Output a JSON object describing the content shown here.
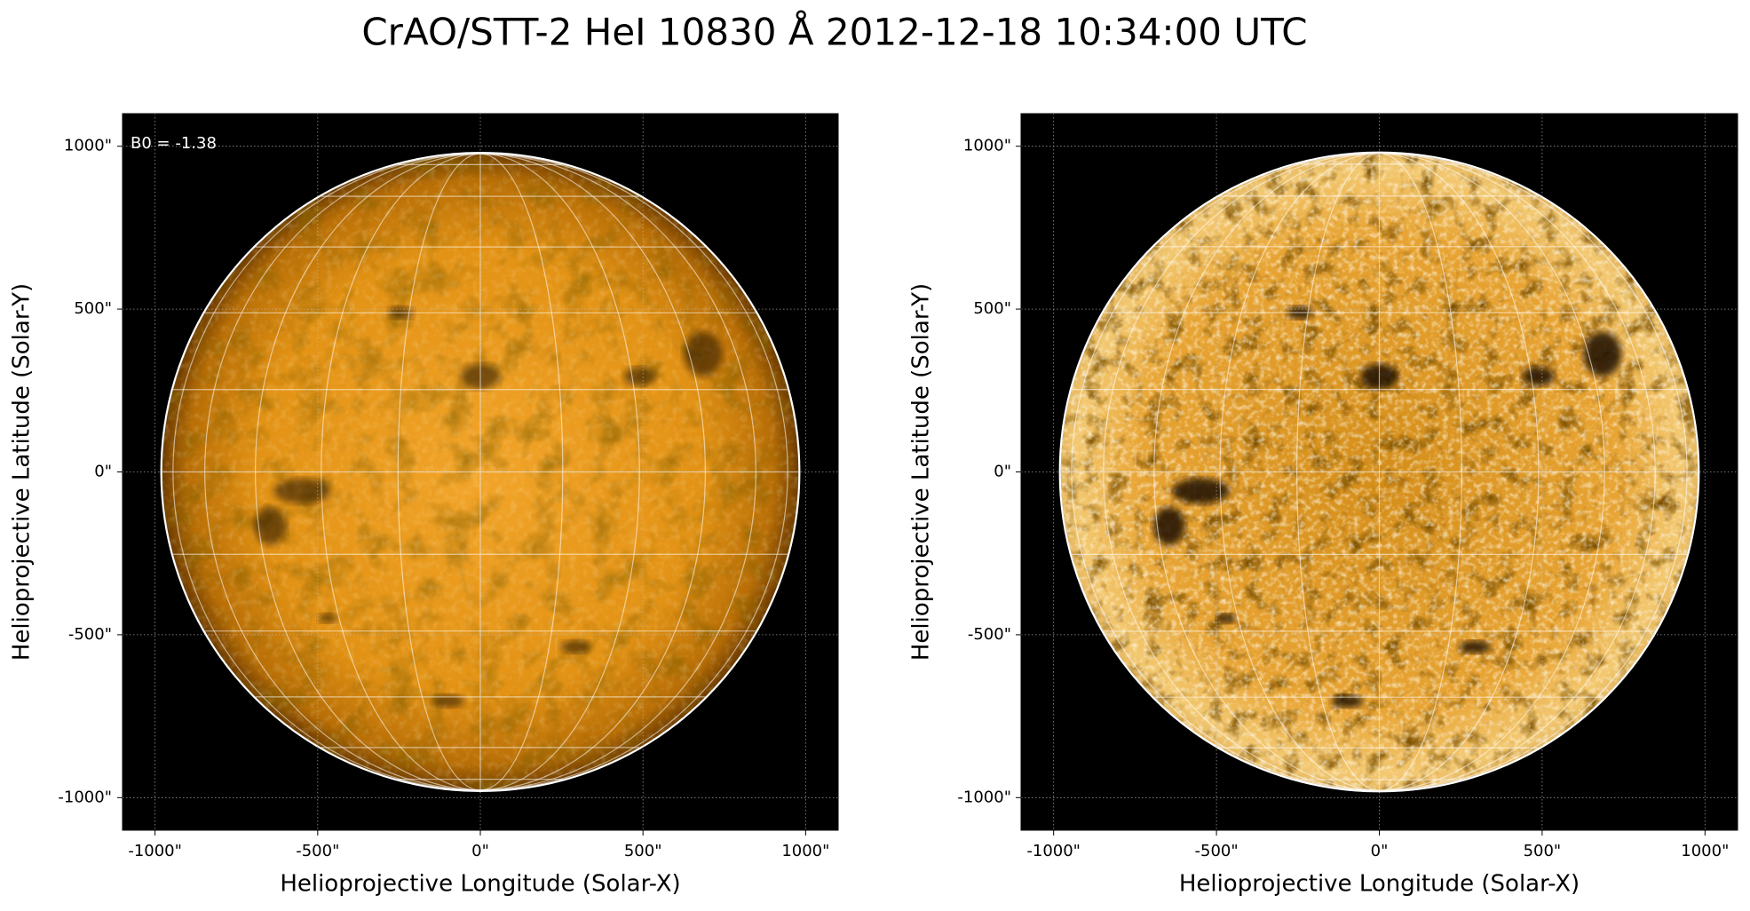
{
  "title": "CrAO/STT-2 HeI 10830 Å 2012-12-18 10:34:00 UTC",
  "chart_data": [
    {
      "type": "image",
      "xlabel": "Helioprojective Longitude (Solar-X)",
      "ylabel": "Helioprojective Latitude (Solar-Y)",
      "xlim": [
        -1100,
        1100
      ],
      "ylim": [
        -1100,
        1100
      ],
      "xticks": [
        {
          "value": -1000,
          "label": "-1000\""
        },
        {
          "value": -500,
          "label": "-500\""
        },
        {
          "value": 0,
          "label": "0\""
        },
        {
          "value": 500,
          "label": "500\""
        },
        {
          "value": 1000,
          "label": "1000\""
        }
      ],
      "yticks": [
        {
          "value": -1000,
          "label": "-1000\""
        },
        {
          "value": -500,
          "label": "-500\""
        },
        {
          "value": 0,
          "label": "0\""
        },
        {
          "value": 500,
          "label": "500\""
        },
        {
          "value": 1000,
          "label": "1000\""
        }
      ],
      "grid": true,
      "annotation": "B0 = -1.38"
    },
    {
      "type": "image",
      "xlabel": "Helioprojective Longitude (Solar-X)",
      "ylabel": "Helioprojective Latitude (Solar-Y)",
      "xlim": [
        -1100,
        1100
      ],
      "ylim": [
        -1100,
        1100
      ],
      "xticks": [
        {
          "value": -1000,
          "label": "-1000\""
        },
        {
          "value": -500,
          "label": "-500\""
        },
        {
          "value": 0,
          "label": "0\""
        },
        {
          "value": 500,
          "label": "500\""
        },
        {
          "value": 1000,
          "label": "1000\""
        }
      ],
      "yticks": [
        {
          "value": -1000,
          "label": "-1000\""
        },
        {
          "value": -500,
          "label": "-500\""
        },
        {
          "value": 0,
          "label": "0\""
        },
        {
          "value": 500,
          "label": "500\""
        },
        {
          "value": 1000,
          "label": "1000\""
        }
      ],
      "grid": true
    }
  ]
}
